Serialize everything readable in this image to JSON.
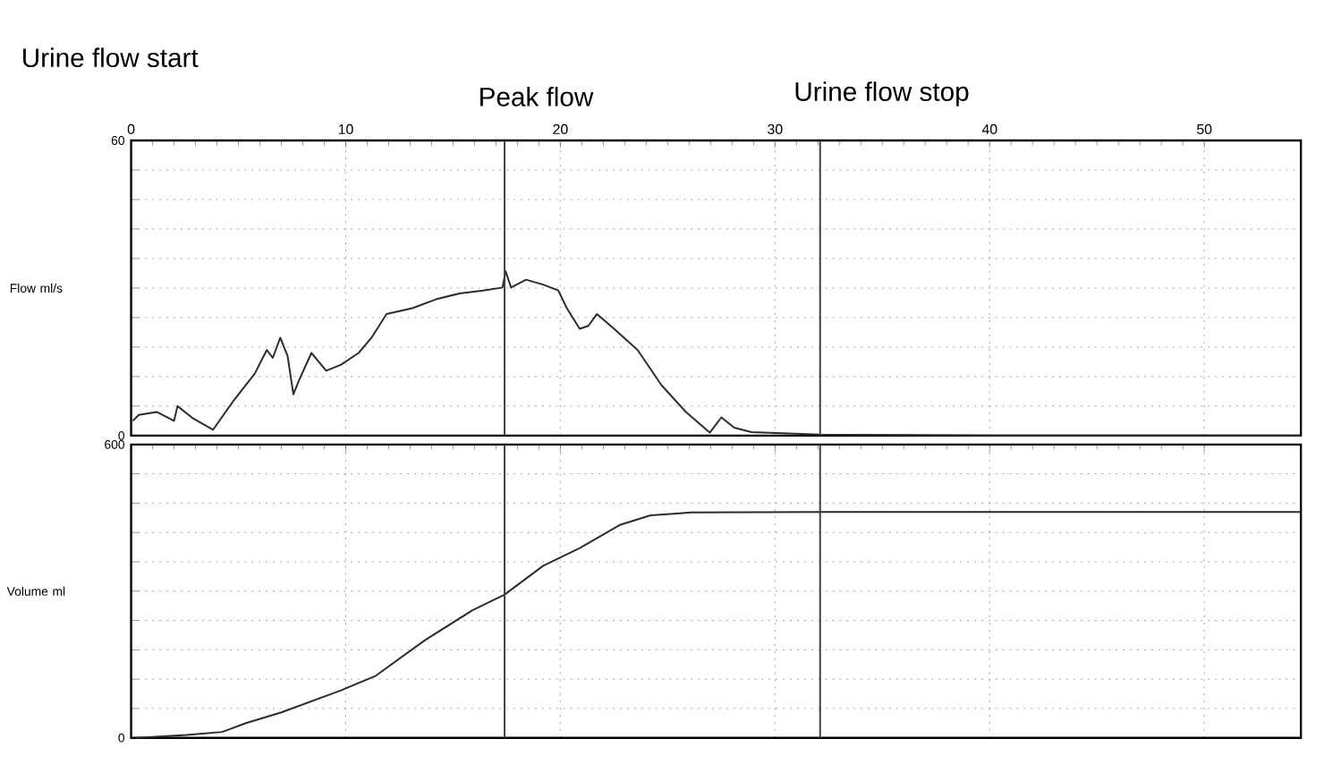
{
  "chart_data": [
    {
      "type": "line",
      "ylabel": "Flow ml/s",
      "x": [
        0.08,
        0.36,
        1.19,
        2.0,
        2.16,
        2.85,
        3.82,
        4.79,
        5.76,
        6.32,
        6.6,
        6.95,
        7.29,
        7.56,
        7.84,
        8.4,
        9.09,
        9.78,
        10.6,
        11.2,
        11.9,
        13.1,
        14.2,
        15.3,
        16.4,
        17.3,
        17.45,
        17.7,
        18.4,
        19.2,
        19.9,
        20.3,
        20.9,
        21.3,
        21.7,
        22.5,
        23.6,
        24.7,
        25.85,
        26.96,
        27.5,
        28.1,
        28.9,
        32.1,
        40,
        54.5
      ],
      "series": [
        {
          "color": "#2b2b2b",
          "values": [
            3.0,
            4.2,
            4.8,
            3.0,
            6.0,
            3.6,
            1.2,
            7.2,
            12.6,
            17.4,
            15.8,
            19.9,
            16.2,
            8.4,
            11.4,
            16.8,
            13.2,
            14.4,
            16.8,
            19.9,
            24.7,
            25.9,
            27.7,
            28.9,
            29.5,
            30.1,
            33.4,
            30.1,
            31.7,
            30.7,
            29.5,
            25.9,
            21.7,
            22.3,
            24.7,
            21.7,
            17.4,
            10.3,
            4.8,
            0.6,
            3.7,
            1.6,
            0.7,
            0.2,
            0,
            0
          ]
        }
      ],
      "xlim": [
        0,
        54.5
      ],
      "xticks": [
        0,
        10,
        20,
        30,
        40,
        50
      ],
      "ylim": [
        0,
        60
      ],
      "yticks": [
        0,
        {
          "value": 6,
          "label": null
        },
        {
          "value": 12,
          "label": null
        },
        {
          "value": 18,
          "label": null
        },
        {
          "value": 24,
          "label": null
        },
        {
          "value": 30,
          "label": null
        },
        {
          "value": 36,
          "label": null
        },
        {
          "value": 42,
          "label": null
        },
        {
          "value": 48,
          "label": null
        },
        {
          "value": 54,
          "label": null
        },
        60
      ],
      "grid": true,
      "ref_lines": [
        {
          "axis": "x",
          "value": 17.4,
          "label": "Peak flow"
        },
        {
          "axis": "x",
          "value": 32.1,
          "label": "Urine flow stop"
        }
      ],
      "annotations": [
        "Urine flow start"
      ]
    },
    {
      "type": "line",
      "ylabel": "Volume ml",
      "x": [
        0.22,
        2.58,
        4.24,
        5.35,
        7.0,
        9.78,
        11.4,
        13.7,
        15.9,
        17.4,
        19.2,
        20.9,
        22.8,
        24.2,
        26.1,
        32.1,
        54.5
      ],
      "series": [
        {
          "color": "#2b2b2b",
          "values": [
            0,
            6,
            12,
            30,
            52,
            97,
            127,
            200,
            261,
            293,
            352,
            388,
            436,
            455,
            461,
            462,
            462
          ]
        }
      ],
      "xlim": [
        0,
        54.5
      ],
      "xticks": [
        0,
        10,
        20,
        30,
        40,
        50
      ],
      "ylim": [
        0,
        600
      ],
      "yticks": [
        0,
        {
          "value": 60,
          "label": null
        },
        {
          "value": 120,
          "label": null
        },
        {
          "value": 180,
          "label": null
        },
        {
          "value": 240,
          "label": null
        },
        {
          "value": 300,
          "label": null
        },
        {
          "value": 360,
          "label": null
        },
        {
          "value": 420,
          "label": null
        },
        {
          "value": 480,
          "label": null
        },
        {
          "value": 540,
          "label": null
        },
        600
      ],
      "grid": true,
      "tick_labels": "y",
      "ref_lines": [
        {
          "axis": "x",
          "value": 17.4
        },
        {
          "axis": "x",
          "value": 32.1
        }
      ]
    }
  ]
}
